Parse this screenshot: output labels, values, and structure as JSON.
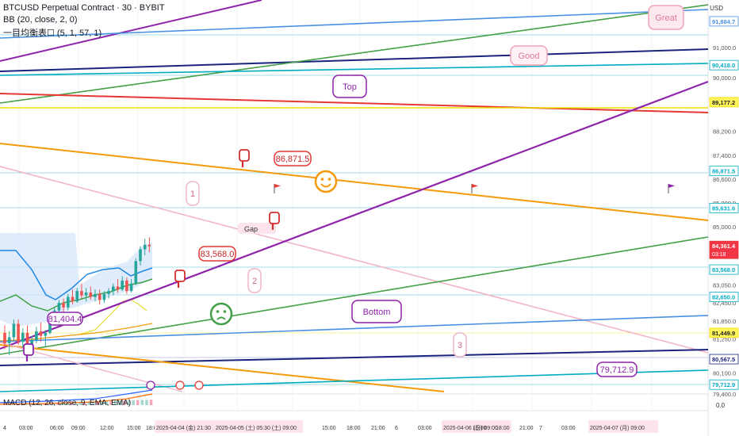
{
  "header": {
    "title": "BTCUSD Perpetual Contract · 30 · BYBIT",
    "bb": "BB (20, close, 2, 0)",
    "ichimoku": "一目均衡表☐ (5, 1, 57, 1)",
    "currency": "USD",
    "macd": "MACD (12, 26, close, 9, EMA, EMA)"
  },
  "colors": {
    "purple": "#8e24aa",
    "navy": "#1a237e",
    "blue": "#4a90e2",
    "green": "#43a047",
    "teal": "#00acc1",
    "red": "#e53935",
    "yellow": "#f0e000",
    "orange": "#f59a0c",
    "pink": "#f0b6c7",
    "bull": "#26a69a",
    "bear": "#ef5350"
  },
  "chart_data": {
    "type": "candlestick",
    "symbol": "BTCUSD",
    "exchange": "BYBIT",
    "interval": "30",
    "ylim": [
      79400,
      92600
    ],
    "y_ticks": [
      91000,
      90000,
      88200,
      87400,
      86600,
      85800,
      85000,
      84200,
      83050,
      82450,
      81850,
      81250,
      80100,
      79400
    ],
    "price_labels": [
      {
        "value": "91,884.7",
        "kind": "blue"
      },
      {
        "value": "90,418.0",
        "kind": "teal"
      },
      {
        "value": "89,177.2",
        "kind": "yellow"
      },
      {
        "value": "86,871.5",
        "kind": "teal"
      },
      {
        "value": "85,631.6",
        "kind": "teal"
      },
      {
        "value": "84,361.4",
        "kind": "current",
        "countdown": "03:18"
      },
      {
        "value": "83,568.0",
        "kind": "teal"
      },
      {
        "value": "82,650.0",
        "kind": "teal"
      },
      {
        "value": "81,449.9",
        "kind": "yellow"
      },
      {
        "value": "80,567.5",
        "kind": "navy"
      },
      {
        "value": "79,712.9",
        "kind": "teal"
      }
    ],
    "x_ticks": [
      "4",
      "03:00",
      "06:00",
      "09:00",
      "12:00",
      "15:00",
      "18:0",
      "2025-04-04 (金) 21:30",
      "2025-04-05 (土) 05:30 (土) 09:00",
      "15:00",
      "18:00",
      "21:00",
      "6",
      "03:00",
      "2025-04-06 (日) 09:00",
      "15:00",
      "18:00",
      "21:00",
      "7",
      "03:00",
      "2025-04-07 (月) 09:00"
    ],
    "annotations": [
      "Great",
      "Good",
      "Top",
      "Bottom",
      "86,871.5",
      "83,568.0",
      "81,404.4",
      "79,712.9",
      "1",
      "2",
      "3",
      "Gap"
    ],
    "macd_ticks": [
      "0.0"
    ],
    "candles": [
      [
        81450,
        81700,
        80900,
        81100
      ],
      [
        81100,
        81500,
        80700,
        81300
      ],
      [
        81300,
        81900,
        81200,
        81750
      ],
      [
        81750,
        81900,
        81050,
        81150
      ],
      [
        81150,
        81600,
        80950,
        81450
      ],
      [
        81450,
        81700,
        80900,
        81050
      ],
      [
        81050,
        81350,
        80750,
        81200
      ],
      [
        81200,
        81650,
        81100,
        81500
      ],
      [
        81500,
        81800,
        81150,
        81350
      ],
      [
        81350,
        81550,
        81000,
        81450
      ],
      [
        81450,
        82000,
        81400,
        81900
      ],
      [
        81900,
        82300,
        81850,
        82200
      ],
      [
        82200,
        82550,
        82050,
        82450
      ],
      [
        82450,
        82600,
        82150,
        82300
      ],
      [
        82300,
        82750,
        82200,
        82650
      ],
      [
        82650,
        82900,
        82400,
        82500
      ],
      [
        82500,
        82950,
        82450,
        82850
      ],
      [
        82850,
        83100,
        82600,
        82700
      ],
      [
        82700,
        82950,
        82500,
        82800
      ],
      [
        82800,
        83000,
        82550,
        82650
      ],
      [
        82650,
        82900,
        82500,
        82750
      ],
      [
        82750,
        82900,
        82400,
        82550
      ],
      [
        82550,
        82850,
        82450,
        82750
      ],
      [
        82750,
        82950,
        82600,
        82850
      ],
      [
        82850,
        83100,
        82700,
        83000
      ],
      [
        83000,
        83250,
        82800,
        82900
      ],
      [
        82900,
        83350,
        82850,
        83200
      ],
      [
        83200,
        83300,
        82750,
        82850
      ],
      [
        82850,
        83250,
        82800,
        83100
      ],
      [
        83100,
        83950,
        83050,
        83850
      ],
      [
        83850,
        84350,
        83700,
        84250
      ],
      [
        84250,
        84600,
        84050,
        84400
      ],
      [
        84400,
        84650,
        84150,
        84350
      ]
    ]
  }
}
